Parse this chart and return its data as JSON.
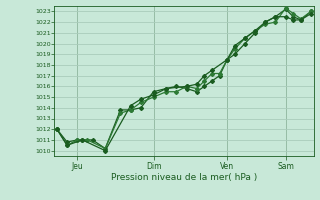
{
  "title": "",
  "xlabel": "Pression niveau de la mer( hPa )",
  "ylim": [
    1009.5,
    1023.5
  ],
  "yticks": [
    1010,
    1011,
    1012,
    1013,
    1014,
    1015,
    1016,
    1017,
    1018,
    1019,
    1020,
    1021,
    1022,
    1023
  ],
  "xtick_labels": [
    "Jeu",
    "Dim",
    "Ven",
    "Sam"
  ],
  "xtick_positions": [
    0.08,
    0.38,
    0.67,
    0.9
  ],
  "background_color": "#c8e8d8",
  "grid_color": "#aaccbb",
  "line_color": "#1a5c20",
  "line_color2": "#2d7a35",
  "series1_x": [
    0.0,
    0.04,
    0.08,
    0.1,
    0.14,
    0.19,
    0.25,
    0.29,
    0.33,
    0.38,
    0.43,
    0.47,
    0.51,
    0.55,
    0.58,
    0.61,
    0.64,
    0.67,
    0.7,
    0.74,
    0.78,
    0.82,
    0.86,
    0.9,
    0.93,
    0.96,
    1.0
  ],
  "series1_y": [
    1012.0,
    1010.8,
    1011.0,
    1011.0,
    1011.0,
    1010.2,
    1013.8,
    1013.8,
    1014.0,
    1015.5,
    1015.8,
    1016.0,
    1015.8,
    1015.5,
    1016.0,
    1016.5,
    1017.0,
    1018.5,
    1019.0,
    1020.0,
    1021.0,
    1022.0,
    1022.5,
    1023.2,
    1022.5,
    1022.2,
    1023.0
  ],
  "series2_x": [
    0.0,
    0.04,
    0.08,
    0.12,
    0.19,
    0.25,
    0.29,
    0.33,
    0.38,
    0.43,
    0.47,
    0.51,
    0.55,
    0.58,
    0.61,
    0.64,
    0.67,
    0.7,
    0.74,
    0.78,
    0.82,
    0.86,
    0.9,
    0.93,
    0.96,
    1.0
  ],
  "series2_y": [
    1012.0,
    1010.5,
    1011.0,
    1011.0,
    1010.2,
    1013.5,
    1013.8,
    1014.5,
    1015.0,
    1015.5,
    1015.5,
    1016.0,
    1015.8,
    1016.5,
    1017.2,
    1017.2,
    1018.5,
    1019.5,
    1020.5,
    1021.2,
    1021.8,
    1022.0,
    1023.3,
    1022.8,
    1022.3,
    1023.0
  ],
  "series3_x": [
    0.0,
    0.04,
    0.1,
    0.19,
    0.29,
    0.33,
    0.38,
    0.43,
    0.51,
    0.55,
    0.58,
    0.61,
    0.67,
    0.7,
    0.74,
    0.78,
    0.82,
    0.86,
    0.9,
    0.93,
    0.96,
    1.0
  ],
  "series3_y": [
    1012.0,
    1010.5,
    1011.0,
    1010.0,
    1014.2,
    1014.8,
    1015.2,
    1015.8,
    1016.0,
    1016.2,
    1017.0,
    1017.5,
    1018.5,
    1019.8,
    1020.5,
    1021.2,
    1022.0,
    1022.5,
    1022.5,
    1022.2,
    1022.2,
    1022.8
  ],
  "figsize": [
    3.2,
    2.0
  ],
  "dpi": 100
}
